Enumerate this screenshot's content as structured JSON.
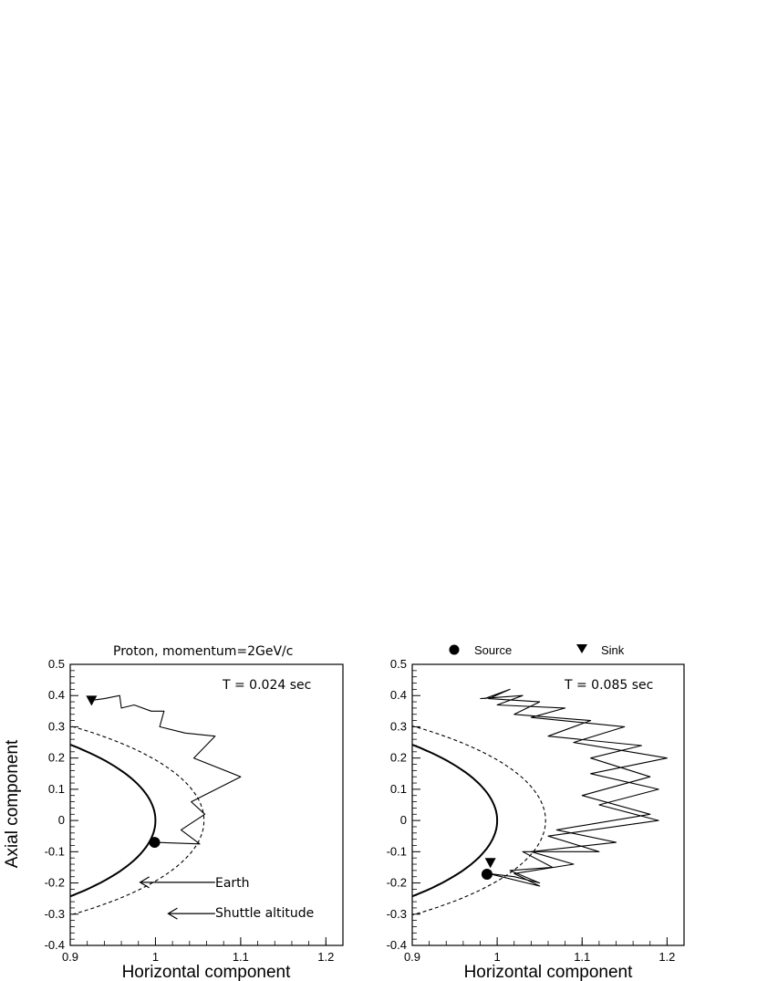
{
  "header": {
    "title": "Proton, momentum=2GeV/c",
    "legend": [
      {
        "label": "Source",
        "marker": "circle"
      },
      {
        "label": "Sink",
        "marker": "triangle-down"
      }
    ]
  },
  "chart_data": [
    {
      "type": "line",
      "annotation_time": "T = 0.024 sec",
      "xlabel": "Horizontal component",
      "ylabel": "Axial component",
      "xlim": [
        0.9,
        1.22
      ],
      "ylim": [
        -0.4,
        0.5
      ],
      "x_ticks": [
        "0.9",
        "1",
        "1.1",
        "1.2"
      ],
      "y_ticks": [
        "-0.4",
        "-0.3",
        "-0.2",
        "-0.1",
        "0",
        "0.1",
        "0.2",
        "0.3",
        "0.4",
        "0.5"
      ],
      "series": [
        {
          "name": "Earth",
          "style": "solid-thick",
          "shape": "dipole-field-line",
          "L": 1.0
        },
        {
          "name": "Shuttle altitude",
          "style": "dashed",
          "shape": "dipole-field-line",
          "L": 1.057
        },
        {
          "style": "solid-thin",
          "points": [
            [
              1.0,
              -0.07
            ],
            [
              1.022,
              -0.072
            ],
            [
              1.052,
              -0.075
            ],
            [
              1.03,
              -0.03
            ],
            [
              1.058,
              0.02
            ],
            [
              1.042,
              0.06
            ],
            [
              1.1,
              0.14
            ],
            [
              1.045,
              0.2
            ],
            [
              1.07,
              0.27
            ],
            [
              1.035,
              0.28
            ],
            [
              1.005,
              0.3
            ],
            [
              1.01,
              0.35
            ],
            [
              0.995,
              0.35
            ],
            [
              0.975,
              0.37
            ],
            [
              0.96,
              0.36
            ],
            [
              0.958,
              0.4
            ],
            [
              0.94,
              0.39
            ],
            [
              0.925,
              0.385
            ]
          ]
        }
      ],
      "markers": [
        {
          "label": "Source",
          "symbol": "circle",
          "x": 0.999,
          "y": -0.07
        },
        {
          "label": "Sink",
          "symbol": "triangle-down",
          "x": 0.925,
          "y": 0.385
        }
      ],
      "annotations": [
        {
          "text": "Earth",
          "arrow_to": [
            0.982,
            -0.198
          ],
          "text_at": [
            1.07,
            -0.198
          ]
        },
        {
          "text": "Shuttle altitude",
          "arrow_to": [
            1.015,
            -0.298
          ],
          "text_at": [
            1.07,
            -0.298
          ]
        }
      ]
    },
    {
      "type": "line",
      "annotation_time": "T = 0.085 sec",
      "xlabel": "Horizontal component",
      "ylabel": "",
      "xlim": [
        0.9,
        1.22
      ],
      "ylim": [
        -0.4,
        0.5
      ],
      "x_ticks": [
        "0.9",
        "1",
        "1.1",
        "1.2"
      ],
      "y_ticks": [
        "-0.4",
        "-0.3",
        "-0.2",
        "-0.1",
        "0",
        "0.1",
        "0.2",
        "0.3",
        "0.4",
        "0.5"
      ],
      "series": [
        {
          "name": "Earth",
          "style": "solid-thick",
          "shape": "dipole-field-line",
          "L": 1.0
        },
        {
          "name": "Shuttle altitude",
          "style": "dashed",
          "shape": "dipole-field-line",
          "L": 1.057
        },
        {
          "style": "solid-thin",
          "points": [
            [
              0.99,
              -0.17
            ],
            [
              1.02,
              -0.18
            ],
            [
              1.05,
              -0.2
            ],
            [
              1.015,
              -0.16
            ],
            [
              1.065,
              -0.15
            ],
            [
              1.03,
              -0.1
            ],
            [
              1.12,
              -0.1
            ],
            [
              1.06,
              -0.05
            ],
            [
              1.19,
              0.0
            ],
            [
              1.12,
              0.05
            ],
            [
              1.19,
              0.1
            ],
            [
              1.11,
              0.15
            ],
            [
              1.2,
              0.2
            ],
            [
              1.09,
              0.25
            ],
            [
              1.15,
              0.3
            ],
            [
              1.04,
              0.33
            ],
            [
              1.08,
              0.36
            ],
            [
              1.0,
              0.37
            ],
            [
              1.03,
              0.4
            ],
            [
              0.98,
              0.39
            ]
          ]
        },
        {
          "style": "solid-thin",
          "points": [
            [
              0.99,
              -0.17
            ],
            [
              1.05,
              -0.21
            ],
            [
              1.02,
              -0.17
            ],
            [
              1.09,
              -0.14
            ],
            [
              1.04,
              -0.1
            ],
            [
              1.14,
              -0.07
            ],
            [
              1.07,
              -0.03
            ],
            [
              1.18,
              0.02
            ],
            [
              1.1,
              0.08
            ],
            [
              1.18,
              0.14
            ],
            [
              1.11,
              0.2
            ],
            [
              1.17,
              0.24
            ],
            [
              1.06,
              0.27
            ],
            [
              1.11,
              0.32
            ],
            [
              1.02,
              0.34
            ],
            [
              1.05,
              0.38
            ],
            [
              0.99,
              0.39
            ],
            [
              1.015,
              0.42
            ],
            [
              0.985,
              0.39
            ]
          ]
        }
      ],
      "markers": [
        {
          "label": "Source",
          "symbol": "circle",
          "x": 0.988,
          "y": -0.172
        },
        {
          "label": "Sink",
          "symbol": "triangle-down",
          "x": 0.992,
          "y": -0.135
        }
      ]
    }
  ]
}
